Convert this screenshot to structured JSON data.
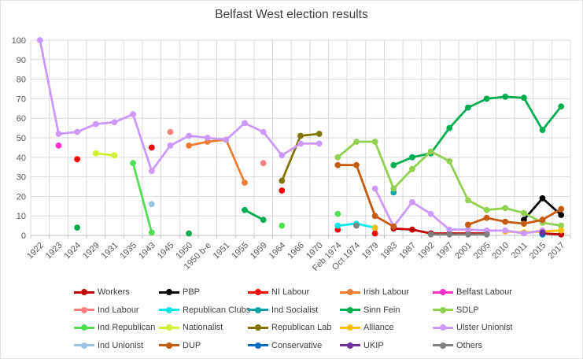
{
  "title": "Belfast West election results",
  "window": {
    "background": "#FFFFFF",
    "border_color": "#E3E3E3"
  },
  "chart_data": {
    "type": "line",
    "title": "Belfast West election results",
    "xlabel": "",
    "ylabel": "",
    "ylim": [
      0,
      100
    ],
    "y_tick_step": 10,
    "grid": true,
    "grid_color": "#D9D9D9",
    "axis_color": "#BFBFBF",
    "axis_label_color": "#595959",
    "title_color": "#404040",
    "legend_position": "bottom",
    "categories": [
      "1922",
      "1923",
      "1924",
      "1929",
      "1931",
      "1935",
      "1943",
      "1945",
      "1950",
      "1950 b-e",
      "1951",
      "1955",
      "1959",
      "1964",
      "1966",
      "1970",
      "Feb 1974",
      "Oct 1974",
      "1979",
      "1983",
      "1987",
      "1992",
      "1997",
      "2001",
      "2005",
      "2010",
      "2011",
      "2015",
      "2017"
    ],
    "series": [
      {
        "name": "Workers",
        "color": "#C00000",
        "points": [
          [
            "1983",
            3.5
          ],
          [
            "1987",
            3
          ],
          [
            "1992",
            1
          ],
          [
            "1997",
            1
          ],
          [
            "2001",
            1
          ],
          [
            "2005",
            1
          ],
          [
            "2015",
            1
          ],
          [
            "2017",
            0.5
          ]
        ]
      },
      {
        "name": "PBP",
        "color": "#000000",
        "points": [
          [
            "2011",
            8
          ],
          [
            "2015",
            19
          ],
          [
            "2017",
            10.5
          ]
        ]
      },
      {
        "name": "NI Labour",
        "color": "#FF0000",
        "points": [
          [
            "1924",
            39
          ],
          [
            "1943",
            45
          ],
          [
            "1964",
            23
          ],
          [
            "Feb 1974",
            3
          ],
          [
            "1979",
            1
          ]
        ]
      },
      {
        "name": "Irish Labour",
        "color": "#ED7D31",
        "points": [
          [
            "1950",
            46
          ],
          [
            "1950 b-e",
            48
          ],
          [
            "1951",
            49
          ],
          [
            "1955",
            27
          ]
        ]
      },
      {
        "name": "Belfast Labour",
        "color": "#FF33CC",
        "points": [
          [
            "1923",
            46
          ]
        ]
      },
      {
        "name": "Ind Labour",
        "color": "#FF8080",
        "points": [
          [
            "1945",
            53
          ],
          [
            "1959",
            37
          ]
        ]
      },
      {
        "name": "Republican Clubs",
        "color": "#00E8E8",
        "points": [
          [
            "Feb 1974",
            5
          ],
          [
            "Oct 1974",
            6
          ],
          [
            "1979",
            4
          ]
        ]
      },
      {
        "name": "Ind Socialist",
        "color": "#0FA3A3",
        "points": [
          [
            "1983",
            22
          ]
        ]
      },
      {
        "name": "Sinn Fein",
        "color": "#00AE50",
        "points": [
          [
            "1924",
            4
          ],
          [
            "1950",
            1
          ],
          [
            "1955",
            13
          ],
          [
            "1959",
            8
          ],
          [
            "1983",
            36
          ],
          [
            "1987",
            40
          ],
          [
            "1992",
            42
          ],
          [
            "1997",
            55
          ],
          [
            "2001",
            65.5
          ],
          [
            "2005",
            70
          ],
          [
            "2010",
            71
          ],
          [
            "2011",
            70.5
          ],
          [
            "2015",
            54
          ],
          [
            "2017",
            66
          ]
        ]
      },
      {
        "name": "SDLP",
        "color": "#92D050",
        "points": [
          [
            "Feb 1974",
            40
          ],
          [
            "Oct 1974",
            48
          ],
          [
            "1979",
            48
          ],
          [
            "1983",
            24
          ],
          [
            "1987",
            34
          ],
          [
            "1992",
            43
          ],
          [
            "1997",
            38
          ],
          [
            "2001",
            18
          ],
          [
            "2005",
            13
          ],
          [
            "2010",
            14
          ],
          [
            "2011",
            11.5
          ],
          [
            "2015",
            6.5
          ],
          [
            "2017",
            5
          ]
        ]
      },
      {
        "name": "Ind Republican",
        "color": "#52E052",
        "points": [
          [
            "1935",
            37
          ],
          [
            "1943",
            1.5
          ],
          [
            "1964",
            5
          ],
          [
            "Feb 1974",
            11
          ]
        ]
      },
      {
        "name": "Nationalist",
        "color": "#D2F02F",
        "points": [
          [
            "1929",
            42
          ],
          [
            "1931",
            41
          ]
        ]
      },
      {
        "name": "Republican Lab",
        "color": "#7F7500",
        "points": [
          [
            "1964",
            28
          ],
          [
            "1966",
            51
          ],
          [
            "1970",
            52
          ]
        ]
      },
      {
        "name": "Alliance",
        "color": "#FFC000",
        "points": [
          [
            "1979",
            4
          ],
          [
            "2010",
            2
          ],
          [
            "2011",
            1.5
          ],
          [
            "2015",
            2
          ],
          [
            "2017",
            2.5
          ]
        ]
      },
      {
        "name": "Ulster Unionist",
        "color": "#CC99FF",
        "points": [
          [
            "1922",
            100
          ],
          [
            "1923",
            52
          ],
          [
            "1924",
            53
          ],
          [
            "1929",
            57
          ],
          [
            "1931",
            58
          ],
          [
            "1935",
            62
          ],
          [
            "1943",
            33
          ],
          [
            "1945",
            46
          ],
          [
            "1950",
            51
          ],
          [
            "1950 b-e",
            50
          ],
          [
            "1951",
            49
          ],
          [
            "1955",
            57.5
          ],
          [
            "1959",
            53
          ],
          [
            "1964",
            41
          ],
          [
            "1966",
            47
          ],
          [
            "1970",
            47
          ],
          [
            "1979",
            24
          ],
          [
            "1983",
            4.5
          ],
          [
            "1987",
            17
          ],
          [
            "1992",
            11
          ],
          [
            "1997",
            3
          ],
          [
            "2001",
            3
          ],
          [
            "2005",
            2.5
          ],
          [
            "2010",
            2.5
          ],
          [
            "2011",
            1
          ],
          [
            "2015",
            2.5
          ]
        ]
      },
      {
        "name": "Ind Unionist",
        "color": "#9DC3E6",
        "points": [
          [
            "1943",
            16
          ]
        ]
      },
      {
        "name": "DUP",
        "color": "#C55A11",
        "points": [
          [
            "Feb 1974",
            36
          ],
          [
            "Oct 1974",
            36
          ],
          [
            "1979",
            10
          ],
          [
            "1983",
            4.5
          ],
          [
            "2001",
            5.5
          ],
          [
            "2005",
            9
          ],
          [
            "2010",
            7
          ],
          [
            "2011",
            6
          ],
          [
            "2015",
            8
          ],
          [
            "2017",
            13.5
          ]
        ]
      },
      {
        "name": "Conservative",
        "color": "#0070C0",
        "points": [
          [
            "2015",
            0.5
          ]
        ]
      },
      {
        "name": "UKIP",
        "color": "#7030A0",
        "points": [
          [
            "2015",
            1.5
          ]
        ]
      },
      {
        "name": "Others",
        "color": "#808080",
        "points": [
          [
            "Oct 1974",
            5
          ],
          [
            "1992",
            0.5
          ],
          [
            "1997",
            0.5
          ],
          [
            "2001",
            0.5
          ],
          [
            "2005",
            0.5
          ]
        ]
      }
    ]
  }
}
